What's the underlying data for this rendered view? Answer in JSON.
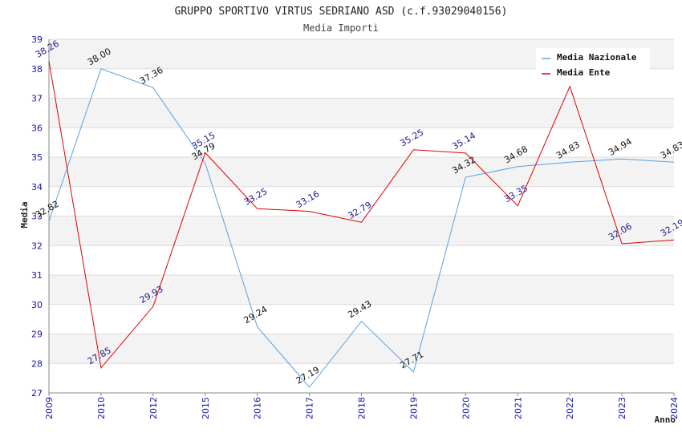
{
  "chart_data": {
    "type": "line",
    "title": "GRUPPO SPORTIVO VIRTUS SEDRIANO ASD (c.f.93029040156)",
    "subtitle": "Media Importi",
    "xlabel": "Anno",
    "ylabel": "Media",
    "categories": [
      "2009",
      "2010",
      "2012",
      "2015",
      "2016",
      "2017",
      "2018",
      "2019",
      "2020",
      "2021",
      "2022",
      "2023",
      "2024"
    ],
    "ylim": [
      27,
      39
    ],
    "yticks": [
      "27",
      "28",
      "29",
      "30",
      "31",
      "32",
      "33",
      "34",
      "35",
      "36",
      "37",
      "38",
      "39"
    ],
    "legend_position": "top-right",
    "series": [
      {
        "name": "Media Nazionale",
        "color": "#5aa0e0",
        "values": [
          32.82,
          38.0,
          37.36,
          34.79,
          29.24,
          27.19,
          29.43,
          27.71,
          34.32,
          34.68,
          34.83,
          34.94,
          34.83
        ],
        "labels": [
          "32.82",
          "38.00",
          "37.36",
          "34.79",
          "29.24",
          "27.19",
          "29.43",
          "27.71",
          "34.32",
          "34.68",
          "34.83",
          "34.94",
          "34.83"
        ]
      },
      {
        "name": "Media Ente",
        "color": "#e00000",
        "values": [
          38.26,
          27.85,
          29.93,
          35.15,
          33.25,
          33.16,
          32.79,
          35.25,
          35.14,
          33.35,
          37.4,
          32.06,
          32.19
        ],
        "labels": [
          "38.26",
          "27.85",
          "29.93",
          "35.15",
          "33.25",
          "33.16",
          "32.79",
          "35.25",
          "35.14",
          "33.35",
          "",
          "32.06",
          "32.19"
        ]
      }
    ]
  }
}
